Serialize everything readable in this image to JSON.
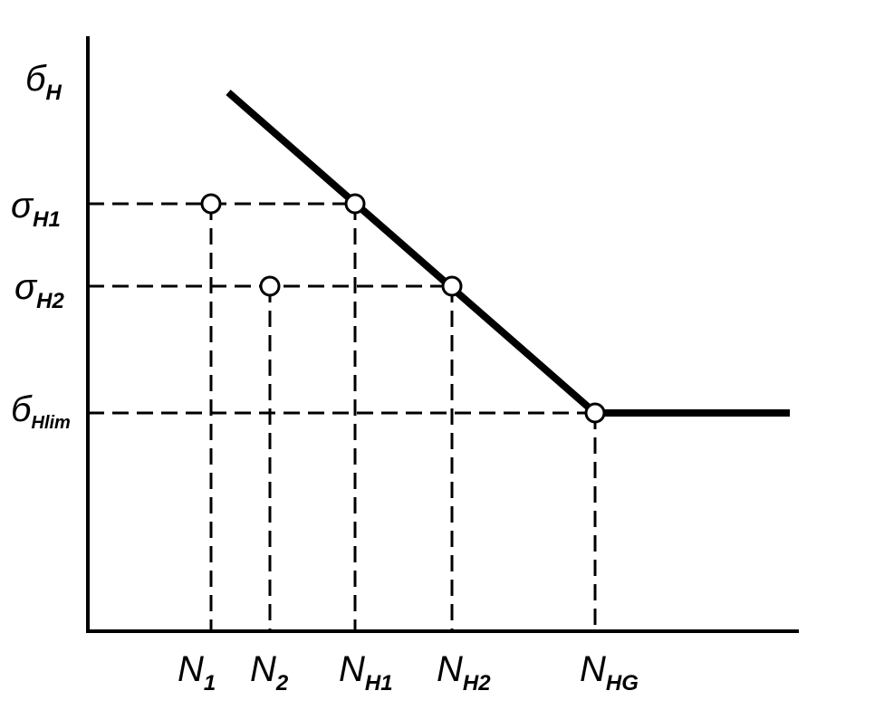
{
  "y_axis": {
    "symbol": "б",
    "subscript": "H"
  },
  "y_labels": [
    {
      "symbol": "σ",
      "subscript": "H1"
    },
    {
      "symbol": "σ",
      "subscript": "H2"
    },
    {
      "symbol": "б",
      "subscript": "Hlim"
    }
  ],
  "x_labels": [
    {
      "symbol": "N",
      "subscript": "1"
    },
    {
      "symbol": "N",
      "subscript": "2"
    },
    {
      "symbol": "N",
      "subscript": "H1"
    },
    {
      "symbol": "N",
      "subscript": "H2"
    },
    {
      "symbol": "N",
      "subscript": "HG"
    }
  ]
}
